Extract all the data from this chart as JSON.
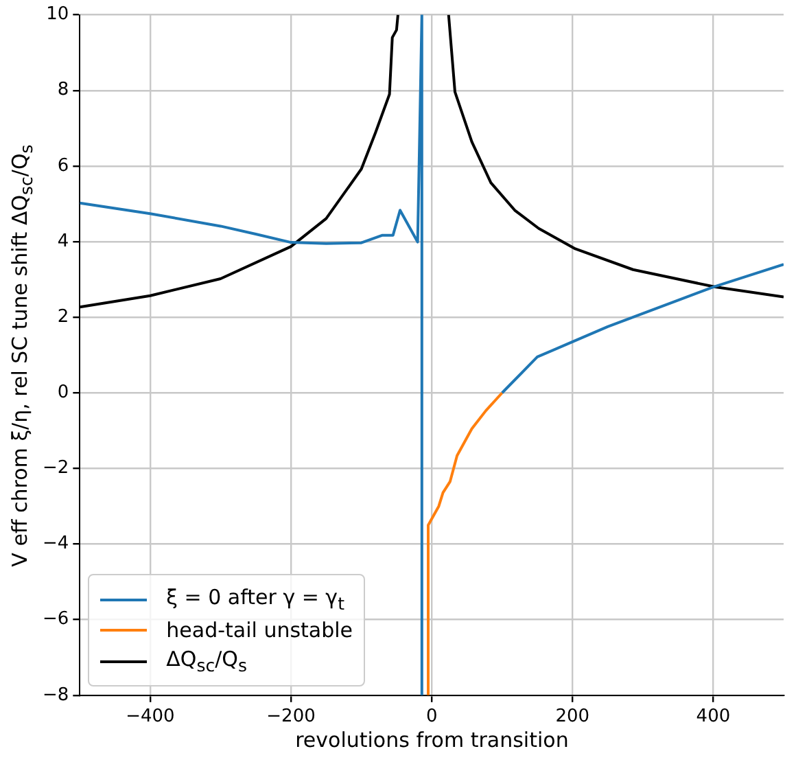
{
  "chart_data": {
    "type": "line",
    "xlabel": "revolutions from transition",
    "ylabel": "V eff chrom ξ/η, rel SC tune shift ΔQ$_{sc}$/Q$_{s}$",
    "xlim": [
      -500,
      500
    ],
    "xticks": [
      -400,
      -200,
      0,
      200,
      400
    ],
    "ylim": [
      -8,
      10
    ],
    "yticks": [
      -8,
      -6,
      -4,
      -2,
      0,
      2,
      4,
      6,
      8,
      10
    ],
    "grid": true,
    "legend": "bottom left",
    "marker": "none",
    "line_style": "solid",
    "series": [
      {
        "name": "ξ = 0 after γ = γ$_{t}$",
        "color": "#1f77b4",
        "x": [
          -500,
          -400,
          -300,
          -250,
          -200,
          -150,
          -100,
          -70,
          -55,
          -45,
          -20,
          -14,
          -14,
          null,
          100,
          150,
          200,
          250,
          300,
          350,
          400,
          450,
          500
        ],
        "values": [
          5.02,
          4.74,
          4.41,
          4.2,
          3.98,
          3.95,
          3.97,
          4.17,
          4.17,
          4.83,
          3.99,
          10,
          -8,
          null,
          0,
          0.95,
          1.35,
          1.75,
          2.1,
          2.45,
          2.8,
          3.1,
          3.4
        ]
      },
      {
        "name": "head-tail unstable",
        "color": "#ff7f0e",
        "x": [
          -5,
          -5,
          10,
          16,
          26,
          36,
          57,
          77,
          100
        ],
        "values": [
          -8,
          -3.5,
          -3.0,
          -2.64,
          -2.35,
          -1.66,
          -0.95,
          -0.47,
          0
        ]
      },
      {
        "name": "ΔQ$_{sc}$/Q$_{s}$",
        "color": "#000000",
        "x": [
          -500,
          -400,
          -300,
          -200,
          -150,
          -100,
          -80,
          -60,
          -56,
          -50,
          -48,
          null,
          24,
          33,
          57,
          84,
          118,
          152,
          204,
          286,
          403,
          500
        ],
        "values": [
          2.27,
          2.57,
          3.02,
          3.87,
          4.61,
          5.92,
          6.88,
          7.9,
          9.4,
          9.6,
          10,
          null,
          10,
          7.96,
          6.64,
          5.56,
          4.83,
          4.35,
          3.81,
          3.26,
          2.8,
          2.54
        ]
      }
    ]
  }
}
